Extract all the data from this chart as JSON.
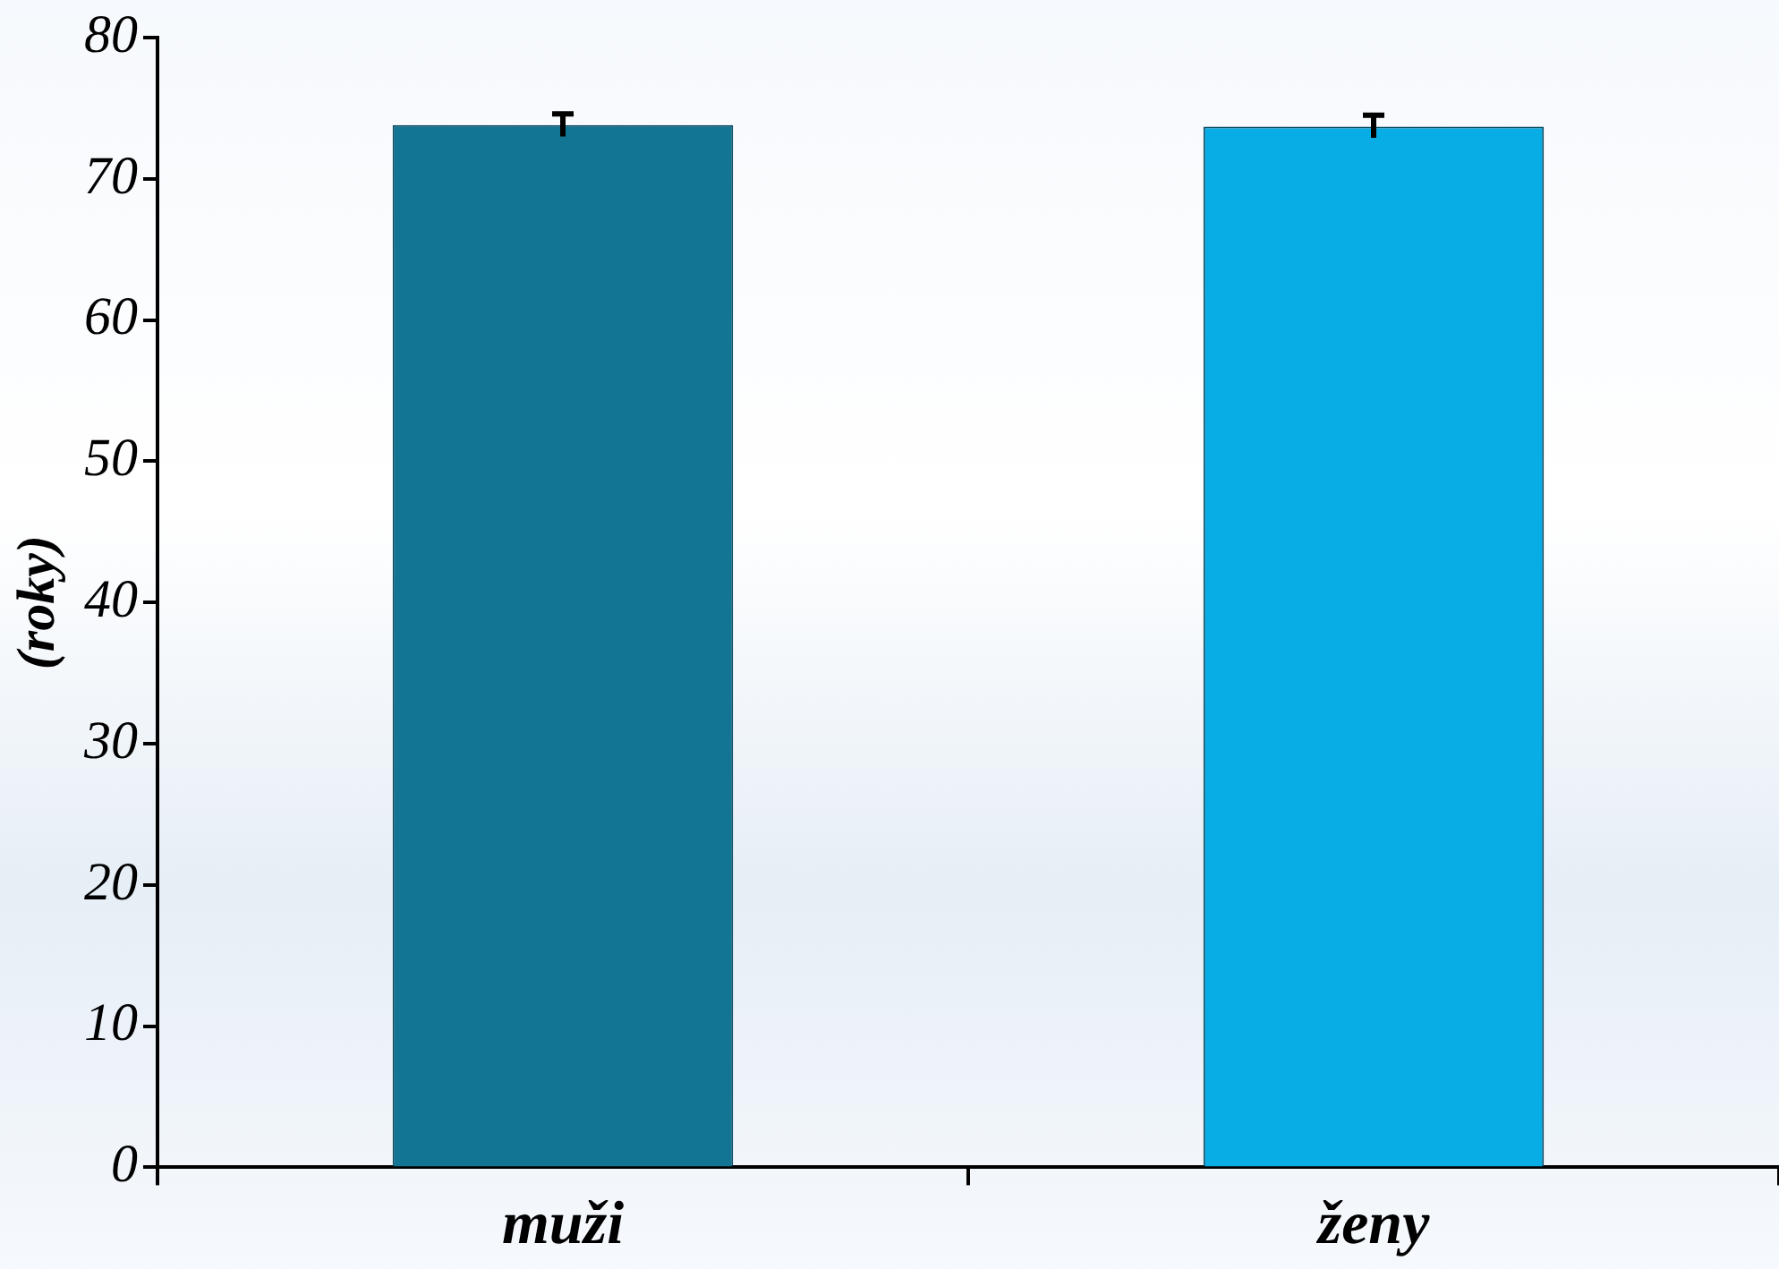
{
  "chart_data": {
    "type": "bar",
    "ylabel": "(roky)",
    "categories": [
      "muži",
      "ženy"
    ],
    "values": [
      73.8,
      73.7
    ],
    "colors": [
      "#137594",
      "#08ade6"
    ],
    "errors": [
      0.8,
      0.8
    ],
    "ylim": [
      0,
      80
    ],
    "yticks": [
      0,
      10,
      20,
      30,
      40,
      50,
      60,
      70,
      80
    ],
    "grid": false,
    "legend": false
  }
}
